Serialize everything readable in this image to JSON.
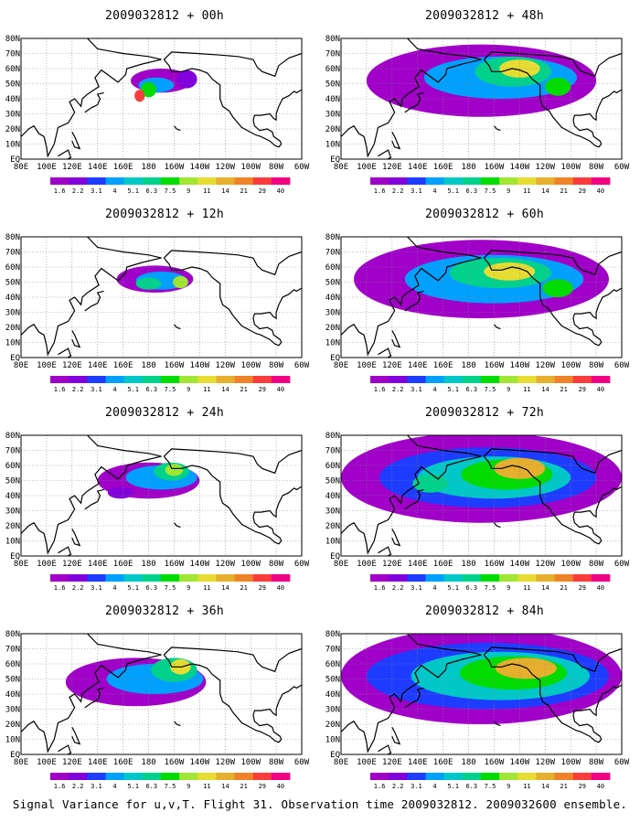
{
  "caption": "Signal Variance for u,v,T. Flight 31. Observation time 2009032812. 2009032600 ensemble.",
  "map": {
    "lat_labels": [
      "80N",
      "70N",
      "60N",
      "50N",
      "40N",
      "30N",
      "20N",
      "10N",
      "EQ"
    ],
    "lon_labels": [
      "80E",
      "100E",
      "120E",
      "140E",
      "160E",
      "180",
      "160W",
      "140W",
      "120W",
      "100W",
      "80W",
      "60W"
    ]
  },
  "colorbar": {
    "levels": [
      "1.6",
      "2.2",
      "3.1",
      "4",
      "5.1",
      "6.3",
      "7.5",
      "9",
      "11",
      "14",
      "21",
      "29",
      "40"
    ],
    "colors": [
      "#a000c8",
      "#8200dc",
      "#1e3cff",
      "#00a0ff",
      "#00c8c8",
      "#00d28c",
      "#00dc00",
      "#a0e632",
      "#e6dc32",
      "#e6af2d",
      "#f08228",
      "#fa3c3c",
      "#f00082"
    ]
  },
  "panels": [
    {
      "title": "2009032812 + 00h",
      "intensity": 0
    },
    {
      "title": "2009032812 + 12h",
      "intensity": 1
    },
    {
      "title": "2009032812 + 24h",
      "intensity": 2
    },
    {
      "title": "2009032812 + 36h",
      "intensity": 3
    },
    {
      "title": "2009032812 + 48h",
      "intensity": 4
    },
    {
      "title": "2009032812 + 60h",
      "intensity": 5
    },
    {
      "title": "2009032812 + 72h",
      "intensity": 6
    },
    {
      "title": "2009032812 + 84h",
      "intensity": 7
    }
  ]
}
